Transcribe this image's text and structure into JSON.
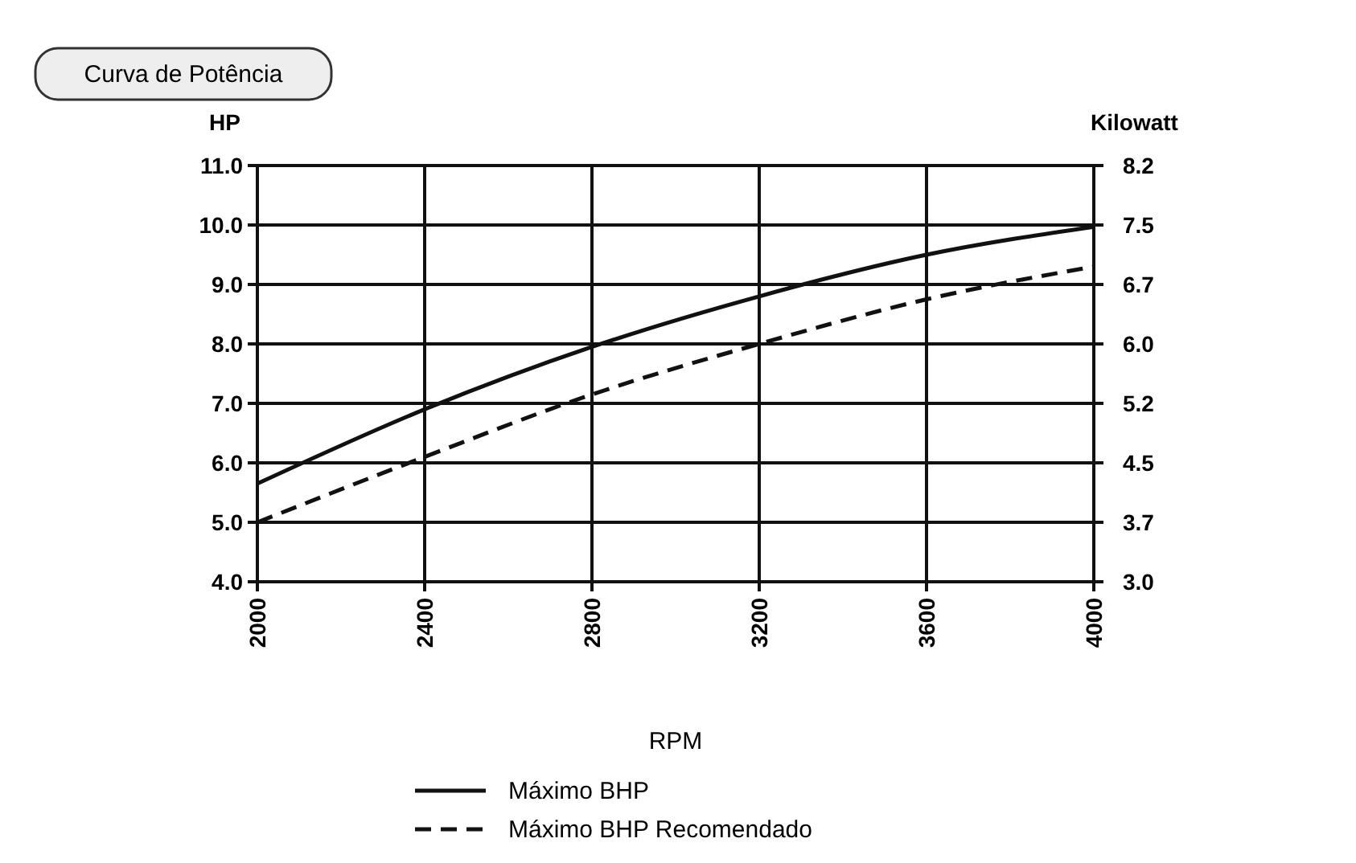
{
  "chart_data": {
    "type": "line",
    "title": "Curva de Potência",
    "xlabel": "RPM",
    "ylabel": "HP",
    "y2label": "Kilowatt",
    "x": [
      2000,
      2400,
      2800,
      3200,
      3600,
      4000
    ],
    "series": [
      {
        "name": "Máximo BHP",
        "color": "#111111",
        "values": [
          5.65,
          6.9,
          7.95,
          8.8,
          9.5,
          9.97
        ],
        "line_style": "solid"
      },
      {
        "name": "Máximo BHP Recomendado",
        "color": "#111111",
        "values": [
          5.0,
          6.1,
          7.15,
          8.0,
          8.75,
          9.3
        ],
        "line_style": "dashed"
      }
    ],
    "xlim": [
      2000,
      4000
    ],
    "xticks": [
      2000,
      2400,
      2800,
      3200,
      3600,
      4000
    ],
    "ylim": [
      4,
      11
    ],
    "yticks": [
      {
        "value": 4,
        "label": "4.0"
      },
      {
        "value": 5,
        "label": "5.0"
      },
      {
        "value": 6,
        "label": "6.0"
      },
      {
        "value": 7,
        "label": "7.0"
      },
      {
        "value": 8,
        "label": "8.0"
      },
      {
        "value": 9,
        "label": "9.0"
      },
      {
        "value": 10,
        "label": "10.0"
      },
      {
        "value": 11,
        "label": "11.0"
      }
    ],
    "y2lim": [
      3.0,
      8.2
    ],
    "y2ticks": [
      {
        "value": 3.0,
        "label": "3.0"
      },
      {
        "value": 3.743,
        "label": "3.7"
      },
      {
        "value": 4.486,
        "label": "4.5"
      },
      {
        "value": 5.229,
        "label": "5.2"
      },
      {
        "value": 5.971,
        "label": "6.0"
      },
      {
        "value": 6.714,
        "label": "6.7"
      },
      {
        "value": 7.457,
        "label": "7.5"
      },
      {
        "value": 8.2,
        "label": "8.2"
      }
    ],
    "grid": true,
    "legend": "bottom"
  }
}
